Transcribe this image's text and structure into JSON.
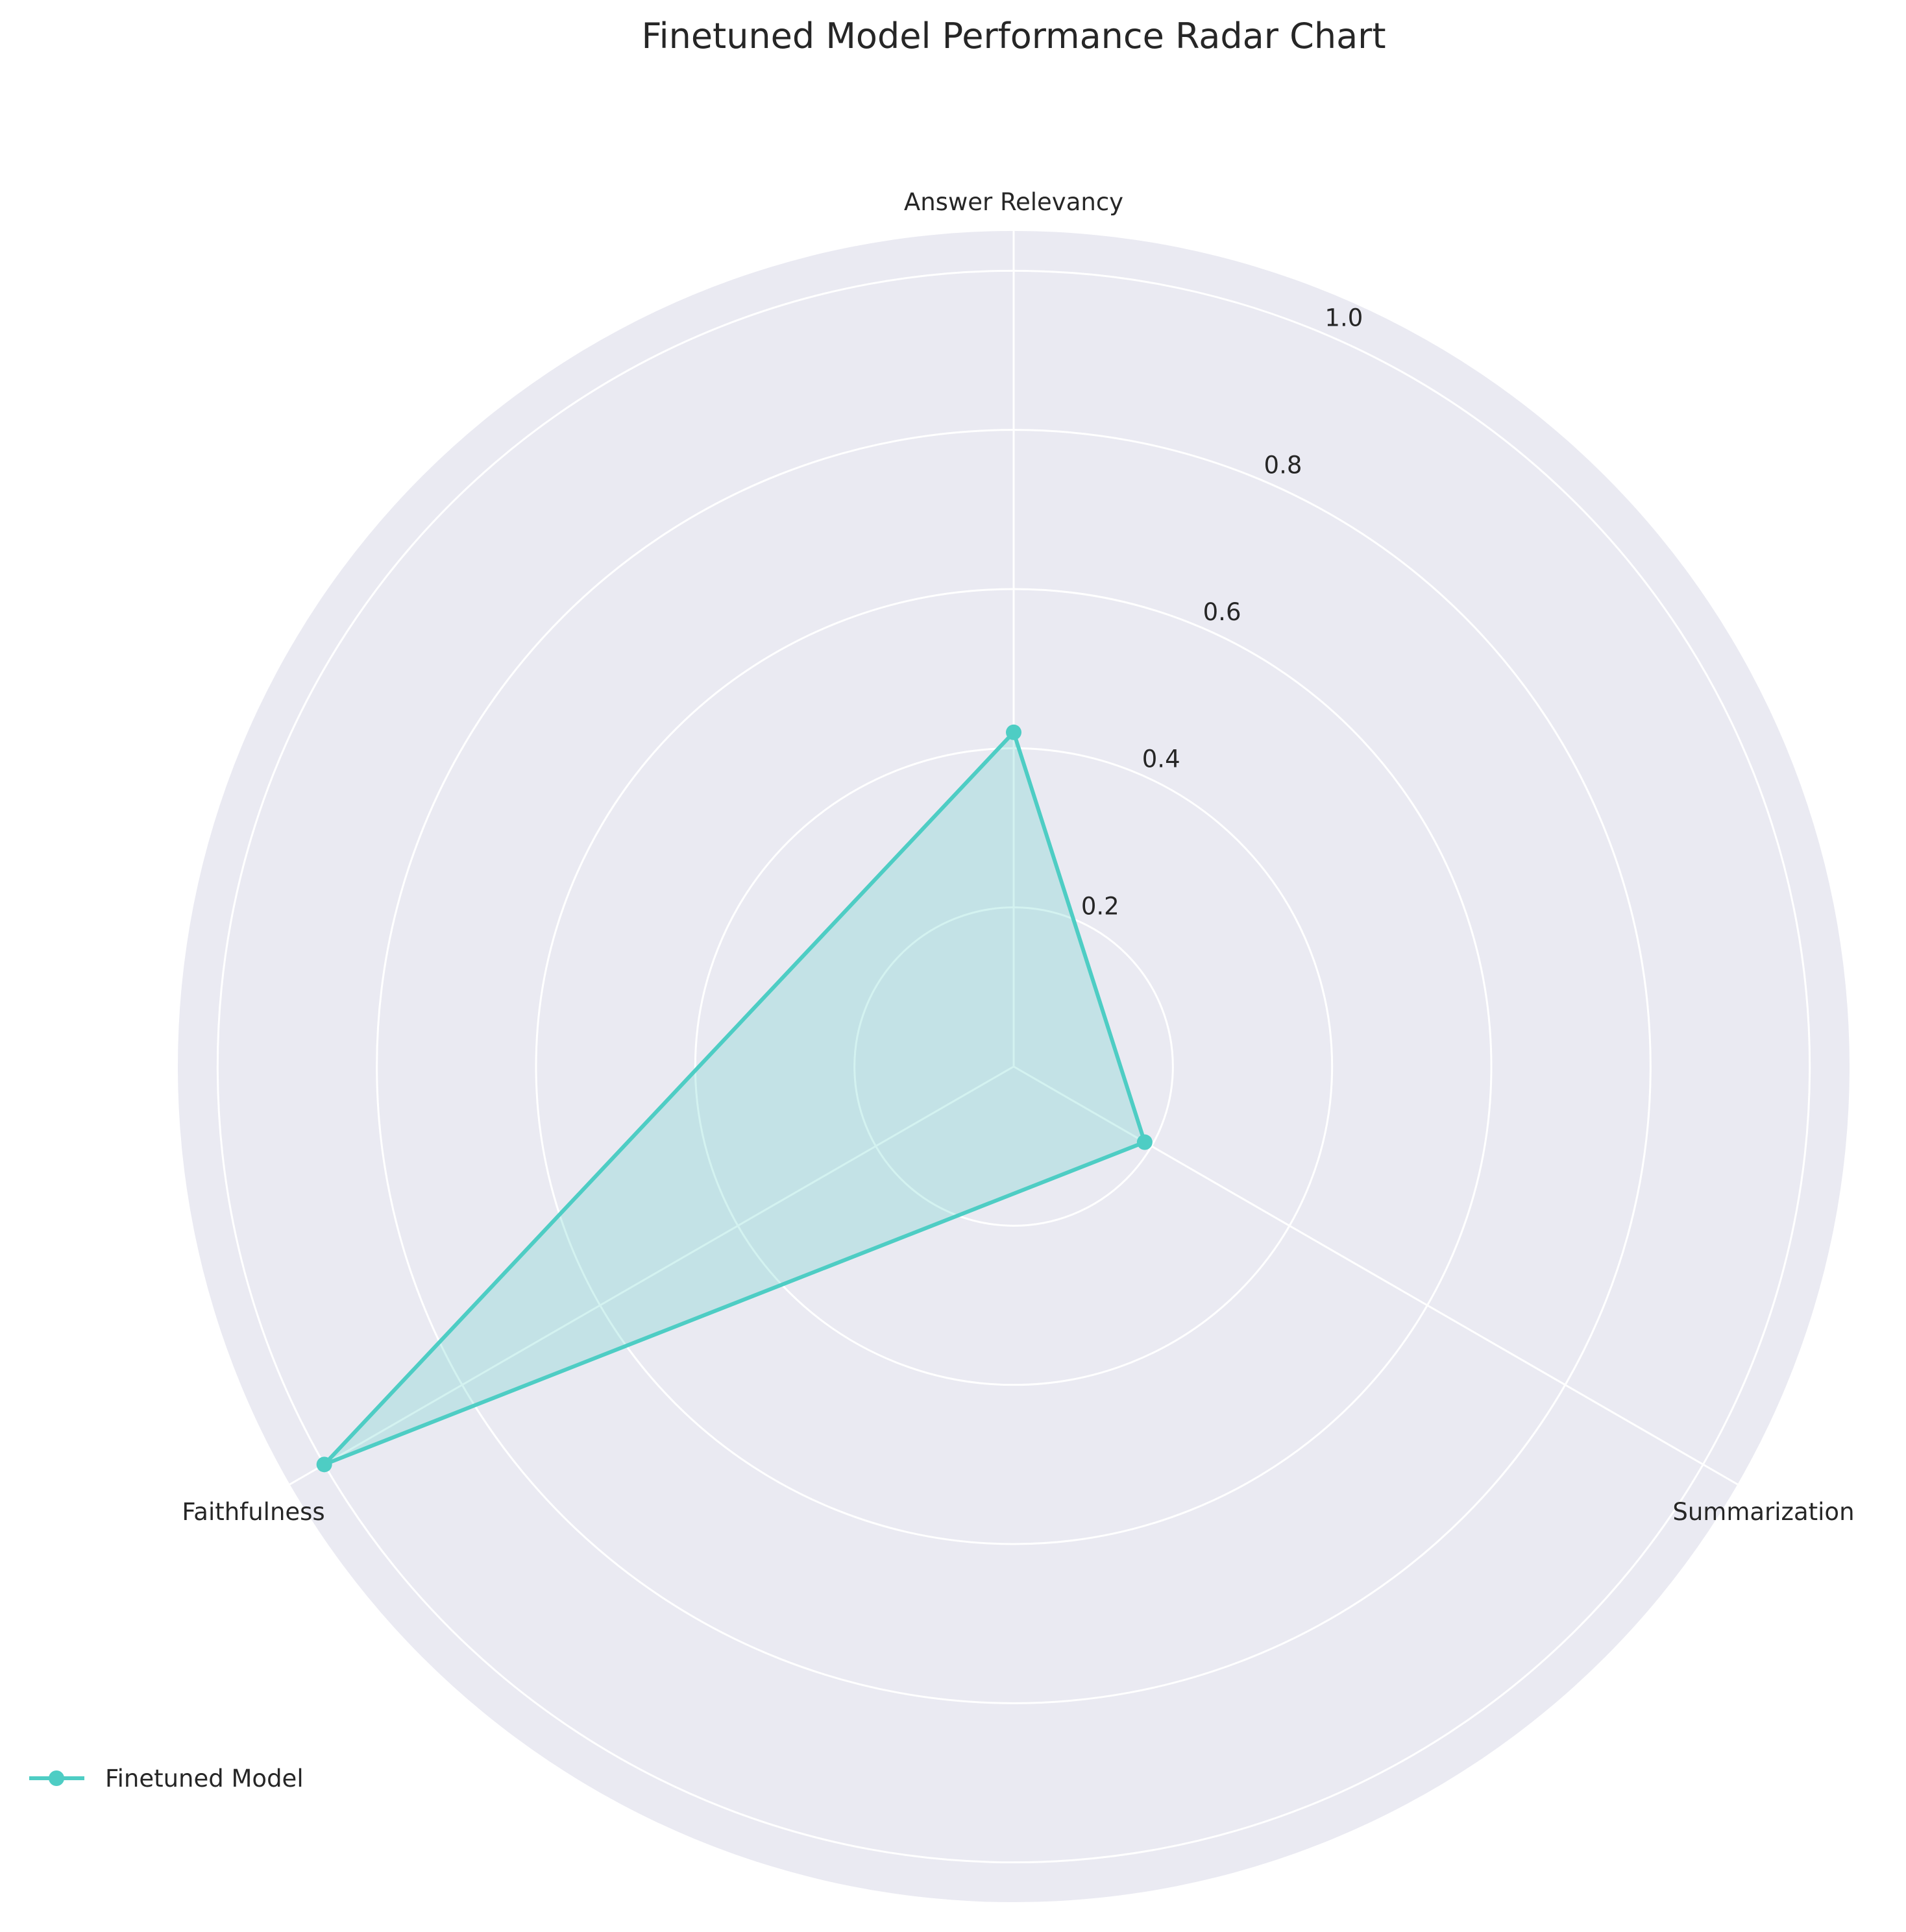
{
  "chart_data": {
    "type": "radar",
    "title": "Finetuned Model Performance Radar Chart",
    "categories": [
      "Answer Relevancy",
      "Summarization",
      "Faithfulness"
    ],
    "series": [
      {
        "name": "Finetuned Model",
        "values": [
          0.42,
          0.19,
          1.0
        ],
        "color": "#4ecdc4"
      }
    ],
    "rlim": [
      0,
      1.05
    ],
    "rticks": [
      0.2,
      0.4,
      0.6,
      0.8,
      1.0
    ],
    "rtick_labels": [
      "0.2",
      "0.4",
      "0.6",
      "0.8",
      "1.0"
    ],
    "grid": true,
    "legend_position": "lower-left",
    "background_color": "#eaeaf2"
  }
}
